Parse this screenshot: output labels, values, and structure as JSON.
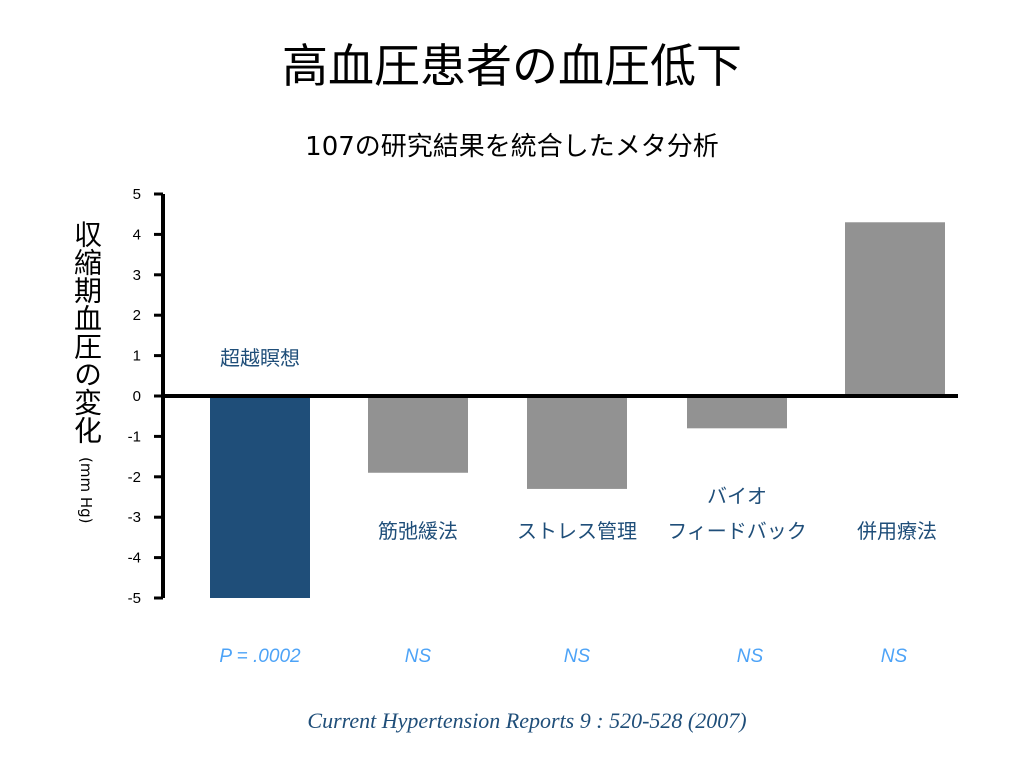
{
  "title": "高血圧患者の血圧低下",
  "subtitle": "107の研究結果を統合したメタ分析",
  "source": "Current Hypertension Reports 9 : 520-528 (2007)",
  "chart_data": {
    "type": "bar",
    "ylabel": "収縮期血圧の変化",
    "ylabel_unit": "(mm Hg)",
    "ylim": [
      -5,
      5
    ],
    "yticks": [
      5,
      4,
      3,
      2,
      1,
      0,
      -1,
      -2,
      -3,
      -4,
      -5
    ],
    "grid": false,
    "categories": [
      "超越瞑想",
      "筋弛緩法",
      "ストレス管理",
      "バイオ\nフィードバック",
      "併用療法"
    ],
    "values": [
      -5.0,
      -1.9,
      -2.3,
      -0.8,
      4.3
    ],
    "p_values": [
      "P = .0002",
      "NS",
      "NS",
      "NS",
      "NS"
    ],
    "colors": [
      "#1f4e79",
      "#929292",
      "#929292",
      "#929292",
      "#929292"
    ],
    "label_color": "#1f4e79",
    "p_color": "#4da3f7"
  }
}
